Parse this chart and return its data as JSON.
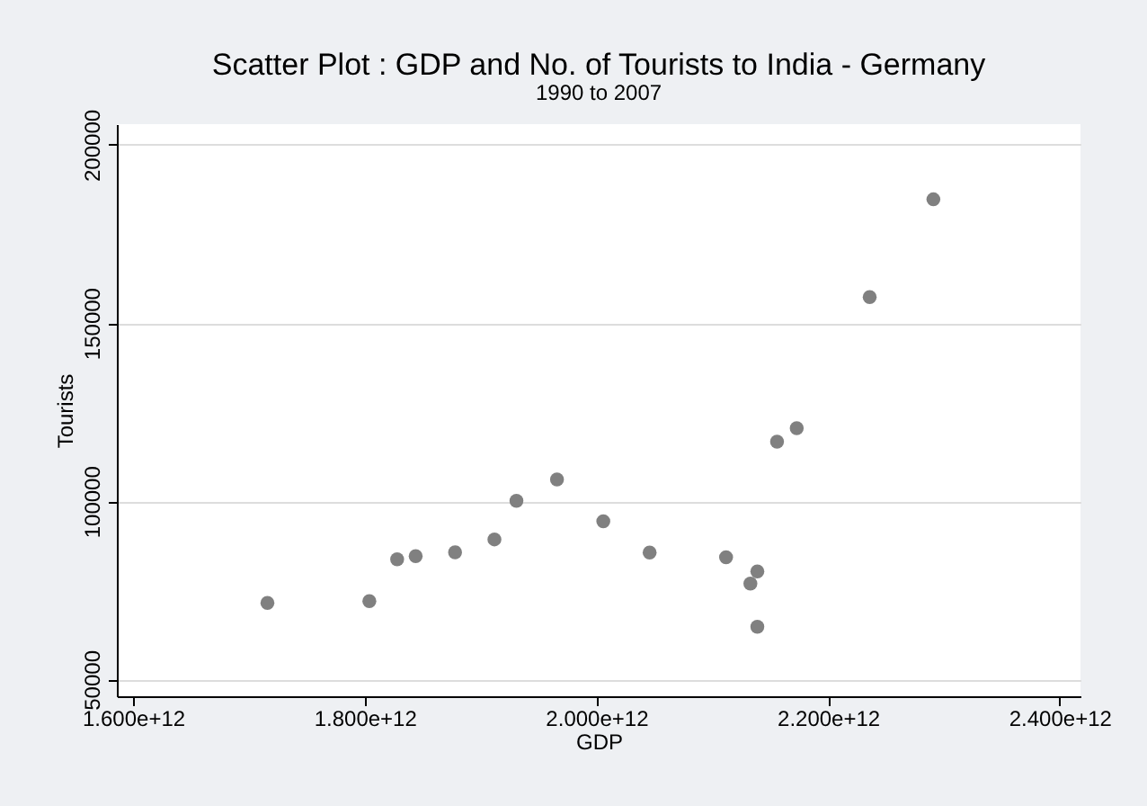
{
  "chart_data": {
    "type": "scatter",
    "title": "Scatter Plot : GDP and No. of Tourists to India - Germany",
    "subtitle": "1990 to 2007",
    "xlabel": "GDP",
    "ylabel": "Tourists",
    "x": [
      1716000000000,
      1804000000000,
      1828000000000,
      1844000000000,
      1878000000000,
      1912000000000,
      1931000000000,
      1966000000000,
      2006000000000,
      2046000000000,
      2112000000000,
      2133000000000,
      2139000000000,
      2139000000000,
      2156000000000,
      2173000000000,
      2236000000000,
      2291000000000
    ],
    "series": [
      {
        "color": "#808080",
        "values": [
          71500,
          72000,
          83700,
          84600,
          85700,
          89300,
          100100,
          106100,
          94400,
          85600,
          84300,
          76900,
          80300,
          64800,
          116700,
          120500,
          157300,
          184700
        ]
      }
    ],
    "xlim": [
      1586000000000,
      2418000000000
    ],
    "ylim": [
      45300,
      205800
    ],
    "xticks": [
      {
        "value": 1600000000000,
        "label": "1.600e+12"
      },
      {
        "value": 1800000000000,
        "label": "1.800e+12"
      },
      {
        "value": 2000000000000,
        "label": "2.000e+12"
      },
      {
        "value": 2200000000000,
        "label": "2.200e+12"
      },
      {
        "value": 2400000000000,
        "label": "2.400e+12"
      }
    ],
    "yticks": [
      50000,
      100000,
      150000,
      200000
    ],
    "grid": "y",
    "marker": "circle"
  }
}
